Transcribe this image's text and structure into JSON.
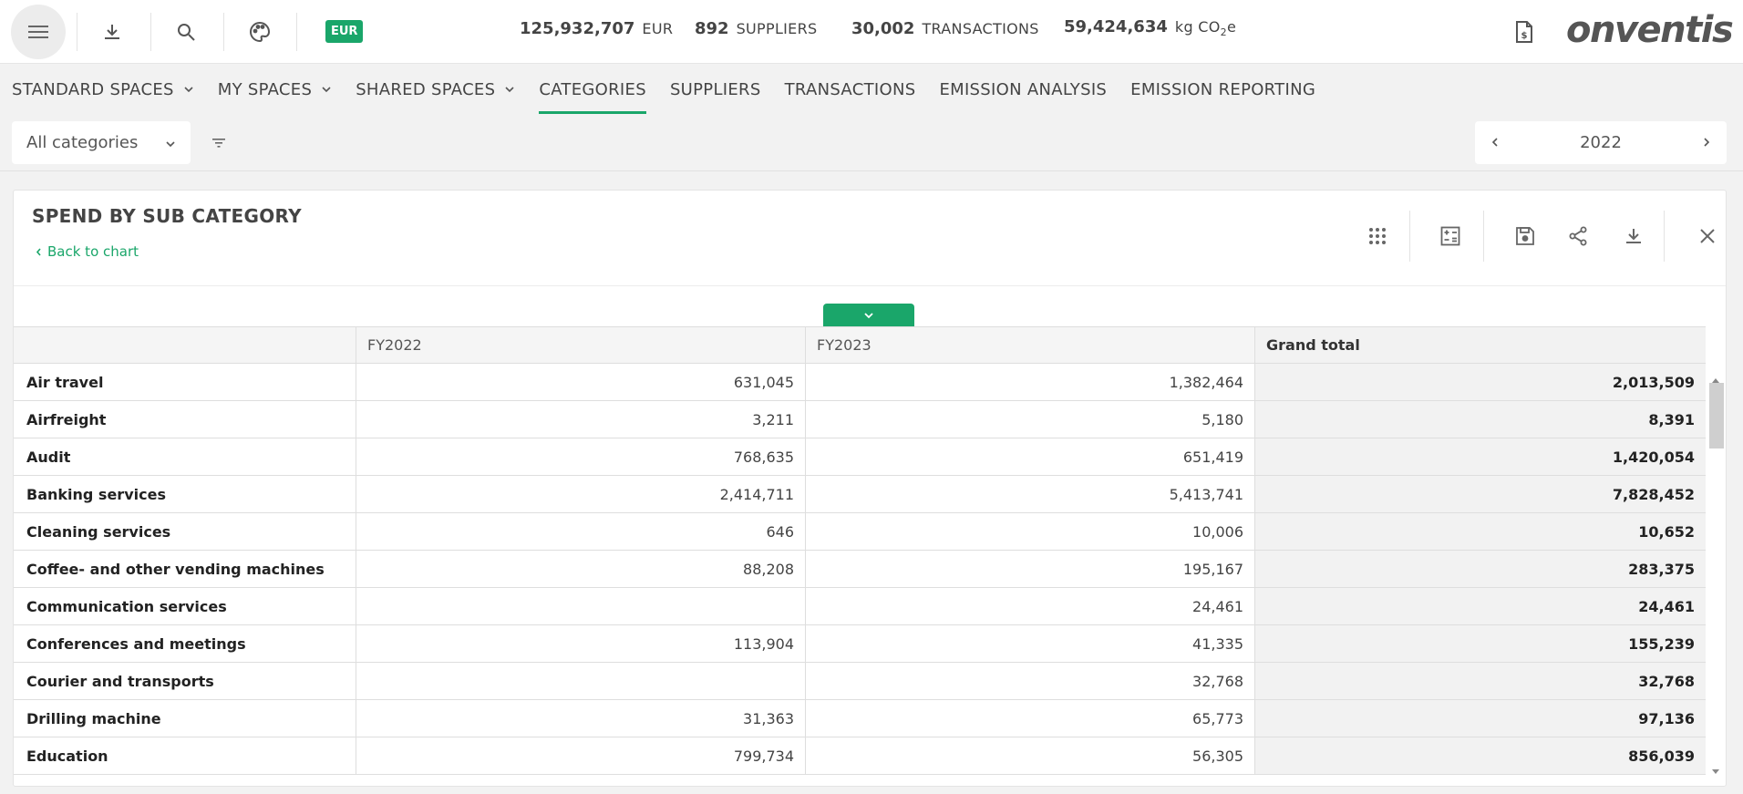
{
  "header": {
    "currency_badge": "EUR",
    "stats": [
      {
        "value": "125,932,707",
        "unit": "EUR"
      },
      {
        "value": "892",
        "unit": "SUPPLIERS"
      },
      {
        "value": "30,002",
        "unit": "TRANSACTIONS"
      },
      {
        "value": "59,424,634",
        "unit": "kg CO",
        "unit_sub": "2",
        "unit_suffix": "e"
      }
    ],
    "logo_text": "onventis"
  },
  "nav": {
    "items": [
      {
        "label": "STANDARD SPACES",
        "dropdown": true
      },
      {
        "label": "MY SPACES",
        "dropdown": true
      },
      {
        "label": "SHARED SPACES",
        "dropdown": true
      },
      {
        "label": "CATEGORIES",
        "active": true
      },
      {
        "label": "SUPPLIERS"
      },
      {
        "label": "TRANSACTIONS"
      },
      {
        "label": "EMISSION ANALYSIS"
      },
      {
        "label": "EMISSION REPORTING"
      }
    ]
  },
  "filters": {
    "category_select": "All categories",
    "year": "2022"
  },
  "panel": {
    "title": "SPEND BY SUB CATEGORY",
    "back_link": "Back to chart"
  },
  "table": {
    "columns": [
      "",
      "FY2022",
      "FY2023",
      "Grand total"
    ],
    "rows": [
      [
        "Air travel",
        "631,045",
        "1,382,464",
        "2,013,509"
      ],
      [
        "Airfreight",
        "3,211",
        "5,180",
        "8,391"
      ],
      [
        "Audit",
        "768,635",
        "651,419",
        "1,420,054"
      ],
      [
        "Banking services",
        "2,414,711",
        "5,413,741",
        "7,828,452"
      ],
      [
        "Cleaning services",
        "646",
        "10,006",
        "10,652"
      ],
      [
        "Coffee- and other vending machines",
        "88,208",
        "195,167",
        "283,375"
      ],
      [
        "Communication services",
        "",
        "24,461",
        "24,461"
      ],
      [
        "Conferences and meetings",
        "113,904",
        "41,335",
        "155,239"
      ],
      [
        "Courier and transports",
        "",
        "32,768",
        "32,768"
      ],
      [
        "Drilling machine",
        "31,363",
        "65,773",
        "97,136"
      ],
      [
        "Education",
        "799,734",
        "56,305",
        "856,039"
      ]
    ]
  },
  "colors": {
    "accent": "#1aa66a"
  }
}
